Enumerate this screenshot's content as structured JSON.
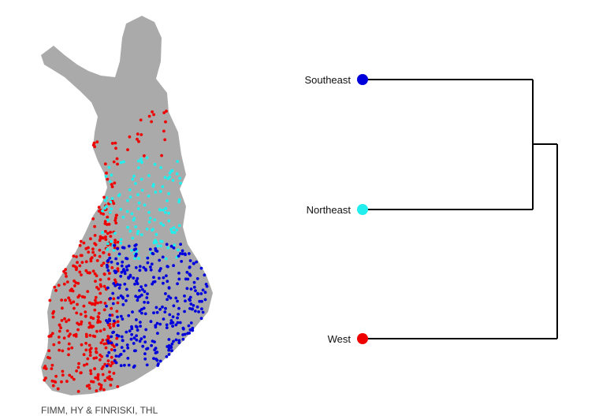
{
  "credit": "FIMM, HY & FINRISKI, THL",
  "colors": {
    "map_fill": "#aaaaaa",
    "West": "#ee0000",
    "Northeast": "#22eeee",
    "Southeast": "#0000dd",
    "branch": "#000000"
  },
  "dendrogram": {
    "leaves": [
      {
        "label": "Southeast",
        "color": "#0000dd"
      },
      {
        "label": "Northeast",
        "color": "#22eeee"
      },
      {
        "label": "West",
        "color": "#ee0000"
      }
    ],
    "merges": [
      {
        "members": [
          "Southeast",
          "Northeast"
        ]
      },
      {
        "members": [
          "Southeast+Northeast",
          "West"
        ]
      }
    ]
  },
  "map": {
    "region": "Finland",
    "clusters": [
      "West",
      "Northeast",
      "Southeast"
    ]
  }
}
